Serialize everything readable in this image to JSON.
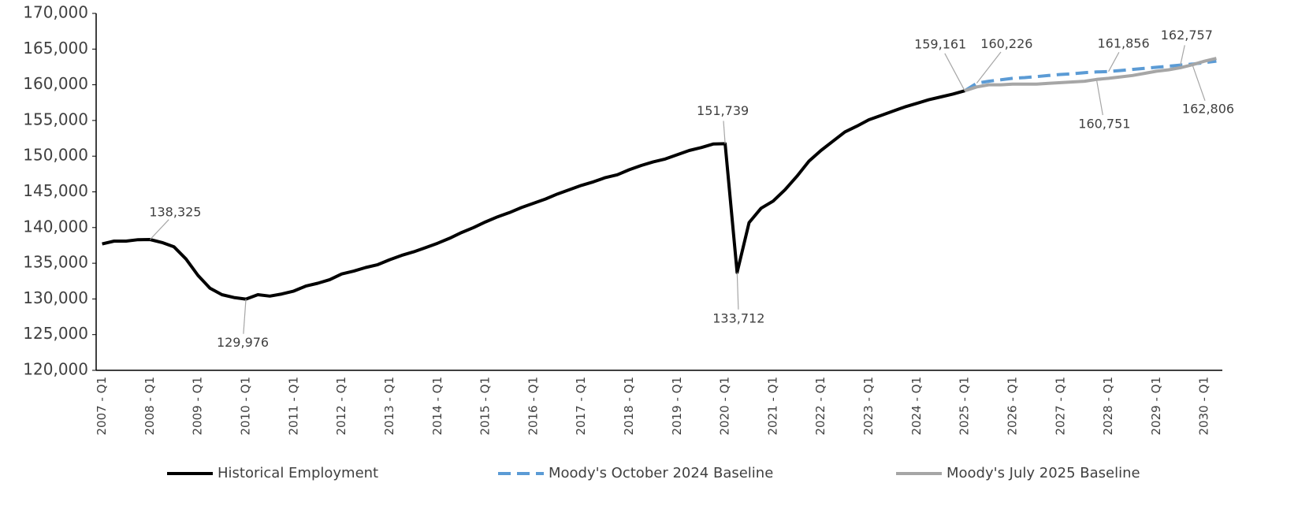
{
  "chart_data": {
    "type": "line",
    "categories": [
      "2007 - Q1",
      null,
      null,
      null,
      "2008 - Q1",
      null,
      null,
      null,
      "2009 - Q1",
      null,
      null,
      null,
      "2010 - Q1",
      null,
      null,
      null,
      "2011 - Q1",
      null,
      null,
      null,
      "2012 - Q1",
      null,
      null,
      null,
      "2013 - Q1",
      null,
      null,
      null,
      "2014 - Q1",
      null,
      null,
      null,
      "2015 - Q1",
      null,
      null,
      null,
      "2016 - Q1",
      null,
      null,
      null,
      "2017 - Q1",
      null,
      null,
      null,
      "2018 - Q1",
      null,
      null,
      null,
      "2019 - Q1",
      null,
      null,
      null,
      "2020 - Q1",
      null,
      null,
      null,
      "2021 - Q1",
      null,
      null,
      null,
      "2022 - Q1",
      null,
      null,
      null,
      "2023 - Q1",
      null,
      null,
      null,
      "2024 - Q1",
      null,
      null,
      null,
      "2025 - Q1",
      null,
      null,
      null,
      "2026 - Q1",
      null,
      null,
      null,
      "2027 - Q1",
      null,
      null,
      null,
      "2028 - Q1",
      null,
      null,
      null,
      "2029 - Q1",
      null,
      null,
      null,
      "2030 - Q1",
      null
    ],
    "series": [
      {
        "name": "Historical Employment",
        "color": "#000000",
        "dash": false,
        "values": [
          137700,
          138100,
          138100,
          138300,
          138325,
          137900,
          137300,
          135600,
          133300,
          131500,
          130600,
          130200,
          129976,
          130600,
          130400,
          130700,
          131100,
          131800,
          132200,
          132700,
          133500,
          133900,
          134400,
          134800,
          135500,
          136100,
          136600,
          137200,
          137800,
          138500,
          139300,
          140000,
          140800,
          141500,
          142100,
          142800,
          143400,
          144000,
          144700,
          145300,
          145900,
          146400,
          147000,
          147400,
          148100,
          148700,
          149200,
          149600,
          150200,
          150800,
          151200,
          151700,
          151739,
          133712,
          140700,
          142700,
          143700,
          145300,
          147200,
          149300,
          150800,
          152100,
          153400,
          154200,
          155100,
          155700,
          156300,
          156900,
          157400,
          157900,
          158300,
          158700,
          159161,
          null,
          null,
          null,
          null,
          null,
          null,
          null,
          null,
          null,
          null,
          null,
          null,
          null,
          null,
          null,
          null,
          null,
          null,
          null,
          null,
          null
        ],
        "value_labels": [
          null,
          null,
          null,
          null,
          "138,325",
          null,
          null,
          null,
          null,
          null,
          null,
          null,
          "129,976",
          null,
          null,
          null,
          null,
          null,
          null,
          null,
          null,
          null,
          null,
          null,
          null,
          null,
          null,
          null,
          null,
          null,
          null,
          null,
          null,
          null,
          null,
          null,
          null,
          null,
          null,
          null,
          null,
          null,
          null,
          null,
          null,
          null,
          null,
          null,
          null,
          null,
          null,
          null,
          "151,739",
          "133,712",
          null,
          null,
          null,
          null,
          null,
          null,
          null,
          null,
          null,
          null,
          null,
          null,
          null,
          null,
          null,
          null,
          null,
          null,
          "159,161",
          null,
          null,
          null,
          null,
          null,
          null,
          null,
          null,
          null,
          null,
          null,
          null,
          null,
          null,
          null,
          null,
          null,
          null,
          null,
          null,
          null
        ]
      },
      {
        "name": "Moody's October 2024 Baseline",
        "color": "#5b9bd5",
        "dash": true,
        "values": [
          null,
          null,
          null,
          null,
          null,
          null,
          null,
          null,
          null,
          null,
          null,
          null,
          null,
          null,
          null,
          null,
          null,
          null,
          null,
          null,
          null,
          null,
          null,
          null,
          null,
          null,
          null,
          null,
          null,
          null,
          null,
          null,
          null,
          null,
          null,
          null,
          null,
          null,
          null,
          null,
          null,
          null,
          null,
          null,
          null,
          null,
          null,
          null,
          null,
          null,
          null,
          null,
          null,
          null,
          null,
          null,
          null,
          null,
          null,
          null,
          null,
          null,
          null,
          null,
          null,
          null,
          null,
          null,
          null,
          null,
          null,
          null,
          159161,
          160226,
          160500,
          160700,
          160900,
          161000,
          161150,
          161300,
          161450,
          161550,
          161700,
          161800,
          161856,
          162000,
          162150,
          162300,
          162450,
          162600,
          162757,
          162900,
          163100,
          163300
        ],
        "value_labels": [
          null,
          null,
          null,
          null,
          null,
          null,
          null,
          null,
          null,
          null,
          null,
          null,
          null,
          null,
          null,
          null,
          null,
          null,
          null,
          null,
          null,
          null,
          null,
          null,
          null,
          null,
          null,
          null,
          null,
          null,
          null,
          null,
          null,
          null,
          null,
          null,
          null,
          null,
          null,
          null,
          null,
          null,
          null,
          null,
          null,
          null,
          null,
          null,
          null,
          null,
          null,
          null,
          null,
          null,
          null,
          null,
          null,
          null,
          null,
          null,
          null,
          null,
          null,
          null,
          null,
          null,
          null,
          null,
          null,
          null,
          null,
          null,
          null,
          "160,226",
          null,
          null,
          null,
          null,
          null,
          null,
          null,
          null,
          null,
          null,
          "161,856",
          null,
          null,
          null,
          null,
          null,
          "162,757",
          null,
          null,
          null
        ]
      },
      {
        "name": "Moody's July 2025 Baseline",
        "color": "#a6a6a6",
        "dash": false,
        "values": [
          null,
          null,
          null,
          null,
          null,
          null,
          null,
          null,
          null,
          null,
          null,
          null,
          null,
          null,
          null,
          null,
          null,
          null,
          null,
          null,
          null,
          null,
          null,
          null,
          null,
          null,
          null,
          null,
          null,
          null,
          null,
          null,
          null,
          null,
          null,
          null,
          null,
          null,
          null,
          null,
          null,
          null,
          null,
          null,
          null,
          null,
          null,
          null,
          null,
          null,
          null,
          null,
          null,
          null,
          null,
          null,
          null,
          null,
          null,
          null,
          null,
          null,
          null,
          null,
          null,
          null,
          null,
          null,
          null,
          null,
          null,
          null,
          159161,
          159700,
          160000,
          160000,
          160100,
          160100,
          160100,
          160200,
          160300,
          160400,
          160500,
          160751,
          160900,
          161100,
          161300,
          161600,
          161900,
          162100,
          162400,
          162806,
          163300,
          163700
        ],
        "value_labels": [
          null,
          null,
          null,
          null,
          null,
          null,
          null,
          null,
          null,
          null,
          null,
          null,
          null,
          null,
          null,
          null,
          null,
          null,
          null,
          null,
          null,
          null,
          null,
          null,
          null,
          null,
          null,
          null,
          null,
          null,
          null,
          null,
          null,
          null,
          null,
          null,
          null,
          null,
          null,
          null,
          null,
          null,
          null,
          null,
          null,
          null,
          null,
          null,
          null,
          null,
          null,
          null,
          null,
          null,
          null,
          null,
          null,
          null,
          null,
          null,
          null,
          null,
          null,
          null,
          null,
          null,
          null,
          null,
          null,
          null,
          null,
          null,
          null,
          null,
          null,
          null,
          null,
          null,
          null,
          null,
          null,
          null,
          null,
          "160,751",
          null,
          null,
          null,
          null,
          null,
          null,
          null,
          "162,806",
          null,
          null
        ]
      }
    ],
    "ylim": [
      120000,
      170000
    ],
    "yticks": [
      {
        "value": 120000,
        "label": "120,000"
      },
      {
        "value": 125000,
        "label": "125,000"
      },
      {
        "value": 130000,
        "label": "130,000"
      },
      {
        "value": 135000,
        "label": "135,000"
      },
      {
        "value": 140000,
        "label": "140,000"
      },
      {
        "value": 145000,
        "label": "145,000"
      },
      {
        "value": 150000,
        "label": "150,000"
      },
      {
        "value": 155000,
        "label": "155,000"
      },
      {
        "value": 160000,
        "label": "160,000"
      },
      {
        "value": 165000,
        "label": "165,000"
      },
      {
        "value": 170000,
        "label": "170,000"
      }
    ],
    "grid": false,
    "legend": "bottom"
  }
}
